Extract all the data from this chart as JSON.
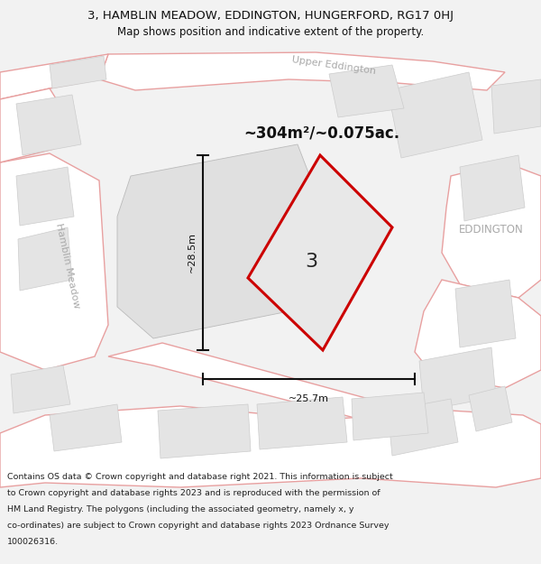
{
  "title": "3, HAMBLIN MEADOW, EDDINGTON, HUNGERFORD, RG17 0HJ",
  "subtitle": "Map shows position and indicative extent of the property.",
  "footer_lines": [
    "Contains OS data © Crown copyright and database right 2021. This information is subject",
    "to Crown copyright and database rights 2023 and is reproduced with the permission of",
    "HM Land Registry. The polygons (including the associated geometry, namely x, y",
    "co-ordinates) are subject to Crown copyright and database rights 2023 Ordnance Survey",
    "100026316."
  ],
  "area_label": "~304m²/~0.075ac.",
  "width_label": "~25.7m",
  "height_label": "~28.5m",
  "plot_number": "3",
  "eddington_label": "EDDINGTON",
  "upper_eddington_label": "Upper Eddington",
  "hamblin_meadow_label": "Hamblin Meadow",
  "map_bg": "#f2f2f2",
  "road_fill": "#ffffff",
  "road_stroke": "#e8a0a0",
  "road_lw": 1.0,
  "block_fill": "#e4e4e4",
  "block_stroke": "#cccccc",
  "block_lw": 0.5,
  "main_block_fill": "#e0e0e0",
  "plot_fill": "#e8e8e8",
  "plot_stroke": "#cc0000",
  "plot_lw": 2.2,
  "dim_color": "#111111",
  "street_label_color": "#aaaaaa",
  "eddington_color": "#aaaaaa",
  "title_color": "#111111",
  "footer_color": "#222222",
  "title_fontsize": 9.5,
  "subtitle_fontsize": 8.5,
  "area_fontsize": 12,
  "plot_num_fontsize": 16,
  "street_fontsize": 8,
  "dim_fontsize": 8,
  "footer_fontsize": 6.8
}
